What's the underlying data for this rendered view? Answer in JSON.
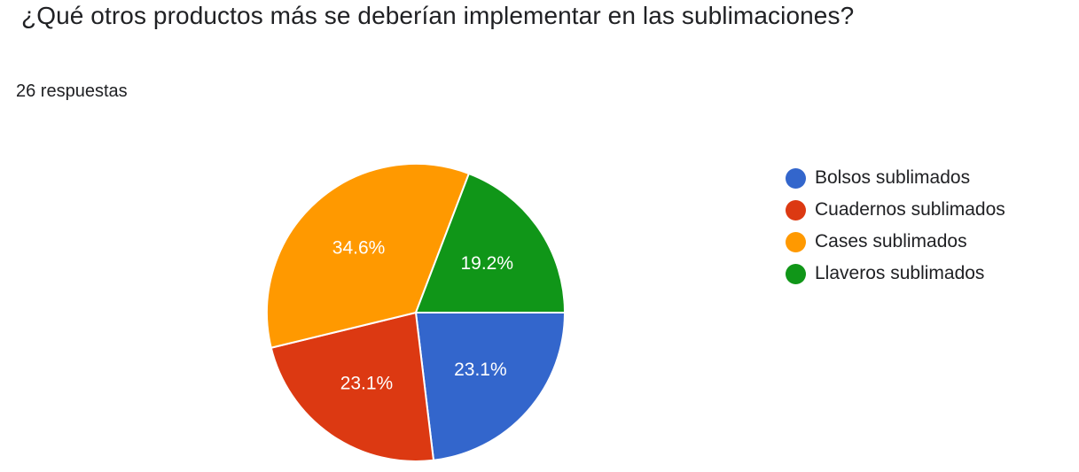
{
  "header": {
    "title": "¿Qué otros productos más se deberían implementar en las sublimaciones?",
    "response_count": "26 respuestas"
  },
  "chart_data": {
    "type": "pie",
    "title": "¿Qué otros productos más se deberían implementar en las sublimaciones?",
    "total_responses": 26,
    "categories": [
      "Bolsos sublimados",
      "Cuadernos sublimados",
      "Cases sublimados",
      "Llaveros sublimados"
    ],
    "values": [
      23.1,
      23.1,
      34.6,
      19.2
    ],
    "labels": [
      "23.1%",
      "23.1%",
      "34.6%",
      "19.2%"
    ],
    "colors": [
      "#3366cc",
      "#dc3912",
      "#ff9900",
      "#109618"
    ],
    "start": "east",
    "direction": "clockwise",
    "legend_position": "right"
  }
}
